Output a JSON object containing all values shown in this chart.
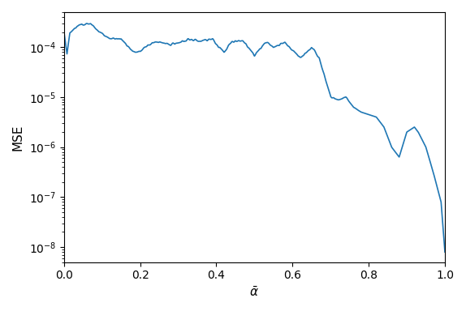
{
  "title": "",
  "xlabel": "$\\bar{\\alpha}$",
  "ylabel": "MSE",
  "xlim": [
    0.0,
    1.0
  ],
  "ylim": [
    5e-09,
    0.0005
  ],
  "line_color": "#1f77b4",
  "line_width": 1.2,
  "figsize": [
    5.74,
    3.84
  ],
  "dpi": 100,
  "xticks": [
    0.0,
    0.2,
    0.4,
    0.6,
    0.8,
    1.0
  ],
  "yticks": [
    1e-08,
    1e-07,
    1e-06,
    1e-05,
    0.0001
  ],
  "background": "#ffffff"
}
